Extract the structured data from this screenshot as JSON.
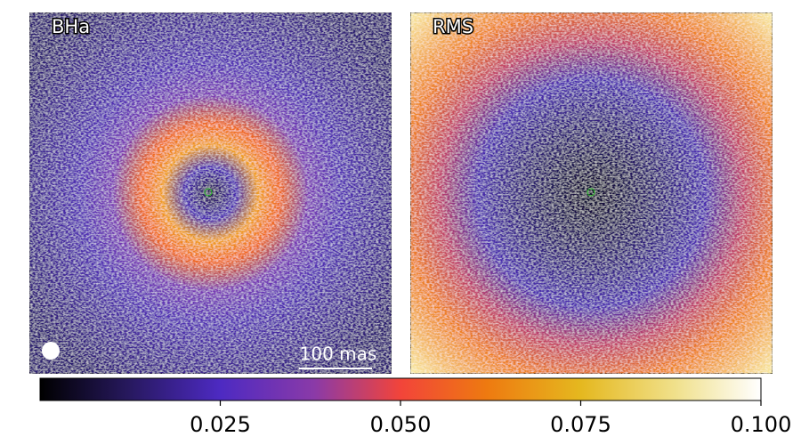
{
  "chart_data": {
    "type": "image-panels",
    "panels": [
      {
        "label": "BHa"
      },
      {
        "label": "RMS"
      }
    ],
    "scalebar": "100 mas",
    "colorbar": {
      "lim": [
        0,
        0.1
      ],
      "ticks": [
        0.025,
        {
          "value": 0.05,
          "label": "0.050"
        },
        0.075,
        {
          "value": 0.1,
          "label": "0.100"
        }
      ]
    }
  }
}
